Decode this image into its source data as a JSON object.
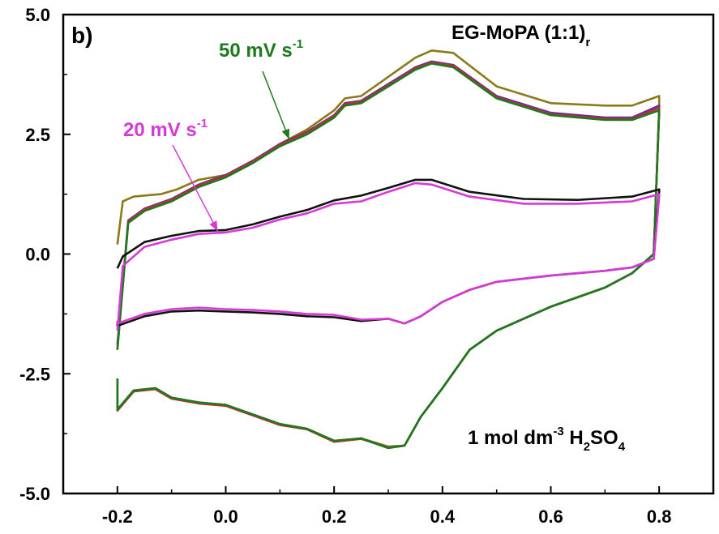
{
  "chart_data": {
    "type": "line",
    "panel_label": "b)",
    "xlabel": "",
    "ylabel": "",
    "xlim": [
      -0.3,
      0.9
    ],
    "ylim": [
      -5.0,
      5.0
    ],
    "x_ticks": [
      -0.2,
      0.0,
      0.2,
      0.4,
      0.6,
      0.8
    ],
    "x_tick_labels": [
      "-0.2",
      "0.0",
      "0.2",
      "0.4",
      "0.6",
      "0.8"
    ],
    "y_ticks": [
      5.0,
      2.5,
      0.0,
      -2.5,
      -5.0
    ],
    "y_tick_labels": [
      "5.0",
      "2.5",
      "0.0",
      "-2.5",
      "-5.0"
    ],
    "grid": false,
    "annotations": {
      "sample": {
        "main": "EG-MoPA (1:1)",
        "sub": "r",
        "color": "#000000"
      },
      "electrolyte": {
        "p1": "1 mol dm",
        "sup": "-3",
        "p2": " H",
        "sub1": "2",
        "p3": "SO",
        "sub2": "4",
        "color": "#000000"
      },
      "rate_50": {
        "text": "50 mV s",
        "sup": "-1",
        "color": "#1e7a1e",
        "arrow_tip": [
          0.117,
          2.4
        ]
      },
      "rate_20": {
        "text": "20 mV s",
        "sup": "-1",
        "color": "#d63ad6",
        "arrow_tip": [
          -0.015,
          0.48
        ]
      }
    },
    "series": [
      {
        "color": "#8a7a1a",
        "x": [
          -0.2,
          -0.19,
          -0.17,
          -0.12,
          -0.09,
          -0.05,
          0.0,
          0.05,
          0.1,
          0.15,
          0.2,
          0.22,
          0.25,
          0.3,
          0.35,
          0.38,
          0.42,
          0.5,
          0.6,
          0.7,
          0.75,
          0.8,
          0.8,
          0.79,
          0.75,
          0.7,
          0.6,
          0.5,
          0.45,
          0.4,
          0.36,
          0.33,
          0.3,
          0.25,
          0.2,
          0.15,
          0.1,
          0.05,
          0.0,
          -0.05,
          -0.1,
          -0.13,
          -0.17,
          -0.2,
          -0.2
        ],
        "y": [
          0.2,
          1.1,
          1.2,
          1.25,
          1.35,
          1.55,
          1.65,
          1.9,
          2.3,
          2.6,
          3.0,
          3.25,
          3.3,
          3.7,
          4.1,
          4.25,
          4.2,
          3.5,
          3.15,
          3.1,
          3.1,
          3.3,
          3.0,
          0.0,
          -0.4,
          -0.7,
          -1.1,
          -1.6,
          -2.0,
          -2.8,
          -3.4,
          -4.0,
          -4.02,
          -3.85,
          -3.9,
          -3.65,
          -3.55,
          -3.35,
          -3.15,
          -3.1,
          -3.0,
          -2.8,
          -2.85,
          -3.25,
          -2.6
        ]
      },
      {
        "color": "#6a2a9a",
        "x": [
          -0.2,
          -0.18,
          -0.15,
          -0.1,
          -0.05,
          0.0,
          0.05,
          0.1,
          0.15,
          0.2,
          0.22,
          0.25,
          0.3,
          0.35,
          0.38,
          0.42,
          0.5,
          0.6,
          0.7,
          0.75,
          0.8,
          0.8,
          0.79,
          0.75,
          0.7,
          0.6,
          0.5,
          0.45,
          0.4,
          0.36,
          0.33,
          0.3,
          0.25,
          0.2,
          0.15,
          0.1,
          0.05,
          0.0,
          -0.05,
          -0.1,
          -0.13,
          -0.17,
          -0.2,
          -0.2
        ],
        "y": [
          -1.9,
          0.7,
          0.95,
          1.15,
          1.45,
          1.65,
          1.95,
          2.3,
          2.55,
          2.9,
          3.15,
          3.2,
          3.55,
          3.9,
          4.02,
          3.95,
          3.3,
          2.95,
          2.85,
          2.85,
          3.1,
          3.0,
          0.0,
          -0.4,
          -0.7,
          -1.1,
          -1.6,
          -2.0,
          -2.8,
          -3.4,
          -4.0,
          -4.05,
          -3.85,
          -3.9,
          -3.65,
          -3.55,
          -3.35,
          -3.15,
          -3.1,
          -3.0,
          -2.8,
          -2.85,
          -3.25,
          -2.6
        ]
      },
      {
        "color": "#c0302a",
        "x": [
          -0.2,
          -0.18,
          -0.15,
          -0.1,
          -0.05,
          0.0,
          0.05,
          0.1,
          0.15,
          0.2,
          0.22,
          0.25,
          0.3,
          0.35,
          0.38,
          0.42,
          0.5,
          0.6,
          0.7,
          0.75,
          0.8,
          0.8,
          0.79,
          0.75,
          0.7,
          0.6,
          0.5,
          0.45,
          0.4,
          0.36,
          0.33,
          0.3,
          0.25,
          0.2,
          0.15,
          0.1,
          0.05,
          0.0,
          -0.05,
          -0.1,
          -0.13,
          -0.17,
          -0.2,
          -0.2
        ],
        "y": [
          -2.0,
          0.68,
          0.93,
          1.13,
          1.43,
          1.63,
          1.93,
          2.28,
          2.53,
          2.88,
          3.13,
          3.18,
          3.52,
          3.88,
          4.0,
          3.93,
          3.27,
          2.92,
          2.82,
          2.82,
          3.05,
          3.0,
          0.0,
          -0.4,
          -0.7,
          -1.1,
          -1.6,
          -2.0,
          -2.8,
          -3.4,
          -4.0,
          -4.04,
          -3.86,
          -3.92,
          -3.66,
          -3.57,
          -3.37,
          -3.17,
          -3.12,
          -3.02,
          -2.82,
          -2.87,
          -3.27,
          -2.6
        ]
      },
      {
        "color": "#1e7a1e",
        "x": [
          -0.2,
          -0.18,
          -0.15,
          -0.1,
          -0.05,
          0.0,
          0.05,
          0.1,
          0.15,
          0.2,
          0.22,
          0.25,
          0.3,
          0.35,
          0.38,
          0.42,
          0.5,
          0.6,
          0.7,
          0.75,
          0.8,
          0.8,
          0.79,
          0.75,
          0.7,
          0.6,
          0.5,
          0.45,
          0.4,
          0.36,
          0.33,
          0.3,
          0.25,
          0.2,
          0.15,
          0.1,
          0.05,
          0.0,
          -0.05,
          -0.1,
          -0.13,
          -0.17,
          -0.2,
          -0.2
        ],
        "y": [
          -2.0,
          0.65,
          0.9,
          1.1,
          1.4,
          1.6,
          1.9,
          2.25,
          2.5,
          2.85,
          3.1,
          3.15,
          3.5,
          3.85,
          3.98,
          3.9,
          3.25,
          2.9,
          2.8,
          2.8,
          3.0,
          3.0,
          0.0,
          -0.4,
          -0.7,
          -1.1,
          -1.6,
          -2.0,
          -2.8,
          -3.4,
          -4.0,
          -4.05,
          -3.85,
          -3.9,
          -3.65,
          -3.55,
          -3.35,
          -3.15,
          -3.1,
          -3.0,
          -2.8,
          -2.85,
          -3.25,
          -2.6
        ]
      },
      {
        "color": "#111111",
        "x": [
          -0.2,
          -0.19,
          -0.15,
          -0.1,
          -0.05,
          0.0,
          0.05,
          0.1,
          0.15,
          0.2,
          0.25,
          0.3,
          0.35,
          0.38,
          0.45,
          0.55,
          0.65,
          0.75,
          0.8,
          0.8,
          0.79,
          0.75,
          0.7,
          0.6,
          0.5,
          0.45,
          0.4,
          0.36,
          0.33,
          0.3,
          0.25,
          0.2,
          0.15,
          0.1,
          0.05,
          0.0,
          -0.05,
          -0.1,
          -0.15,
          -0.2,
          -0.2
        ],
        "y": [
          -0.3,
          -0.05,
          0.25,
          0.38,
          0.48,
          0.5,
          0.62,
          0.78,
          0.92,
          1.12,
          1.22,
          1.38,
          1.55,
          1.55,
          1.3,
          1.15,
          1.13,
          1.2,
          1.35,
          1.3,
          -0.1,
          -0.28,
          -0.35,
          -0.45,
          -0.58,
          -0.75,
          -1.0,
          -1.3,
          -1.45,
          -1.35,
          -1.4,
          -1.32,
          -1.3,
          -1.25,
          -1.22,
          -1.2,
          -1.18,
          -1.2,
          -1.3,
          -1.5,
          -1.4
        ]
      },
      {
        "color": "#d63ad6",
        "x": [
          -0.2,
          -0.19,
          -0.15,
          -0.1,
          -0.05,
          0.0,
          0.05,
          0.1,
          0.15,
          0.2,
          0.25,
          0.3,
          0.35,
          0.38,
          0.45,
          0.55,
          0.65,
          0.75,
          0.8,
          0.8,
          0.79,
          0.75,
          0.7,
          0.6,
          0.5,
          0.45,
          0.4,
          0.36,
          0.33,
          0.3,
          0.25,
          0.2,
          0.15,
          0.1,
          0.05,
          0.0,
          -0.05,
          -0.1,
          -0.15,
          -0.2,
          -0.2
        ],
        "y": [
          -1.6,
          -0.25,
          0.15,
          0.3,
          0.42,
          0.45,
          0.55,
          0.72,
          0.85,
          1.05,
          1.1,
          1.3,
          1.48,
          1.45,
          1.2,
          1.05,
          1.05,
          1.1,
          1.25,
          1.2,
          -0.1,
          -0.28,
          -0.35,
          -0.45,
          -0.58,
          -0.75,
          -1.0,
          -1.3,
          -1.45,
          -1.35,
          -1.37,
          -1.27,
          -1.25,
          -1.2,
          -1.17,
          -1.15,
          -1.12,
          -1.15,
          -1.25,
          -1.45,
          -1.4
        ]
      }
    ]
  }
}
